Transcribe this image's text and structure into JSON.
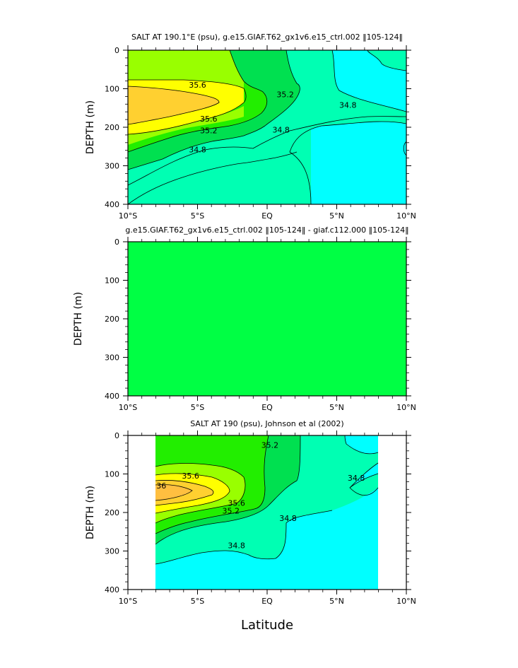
{
  "colors": {
    "s_lt_34_8": "#00ffff",
    "s_34_8_35_0": "#00ffb3",
    "s_35_0_35_2": "#00e050",
    "s_35_2_35_4": "#22ee00",
    "s_35_4_35_6": "#99ff00",
    "s_35_6_35_8": "#ffff00",
    "s_35_8_36_0": "#ffd030",
    "s_gt_36_0": "#ffbf40",
    "difference_fill": "#00ff44"
  },
  "chart_data": [
    {
      "type": "contour",
      "title": "SALT AT 190.1°E (psu), g.e15.GIAF.T62_gx1v6.e15_ctrl.002 ‖105-124‖",
      "ylabel": "DEPTH (m)",
      "xlabel": "",
      "x_ticks": [
        "10°S",
        "5°S",
        "EQ",
        "5°N",
        "10°N"
      ],
      "y_ticks": [
        "0",
        "100",
        "200",
        "300",
        "400"
      ],
      "xlim_deg_lat": [
        -10,
        10
      ],
      "ylim_m": [
        400,
        0
      ],
      "contour_labels": [
        {
          "text": "35.6",
          "lat": -5,
          "depth": 90
        },
        {
          "text": "35.6",
          "lat": -4.2,
          "depth": 178
        },
        {
          "text": "35.2",
          "lat": -4.2,
          "depth": 208
        },
        {
          "text": "34.8",
          "lat": -5,
          "depth": 258
        },
        {
          "text": "35.2",
          "lat": 1.3,
          "depth": 115
        },
        {
          "text": "34.8",
          "lat": 1,
          "depth": 206
        },
        {
          "text": "34.8",
          "lat": 5.8,
          "depth": 142
        }
      ]
    },
    {
      "type": "contour",
      "title": "g.e15.GIAF.T62_gx1v6.e15_ctrl.002 ‖105-124‖ - giaf.c112.000 ‖105-124‖",
      "ylabel": "DEPTH (m)",
      "xlabel": "",
      "x_ticks": [
        "10°S",
        "5°S",
        "EQ",
        "5°N",
        "10°N"
      ],
      "y_ticks": [
        "0",
        "100",
        "200",
        "300",
        "400"
      ],
      "xlim_deg_lat": [
        -10,
        10
      ],
      "ylim_m": [
        400,
        0
      ],
      "field": "uniform (zero difference)"
    },
    {
      "type": "contour",
      "title": "SALT AT 190 (psu), Johnson et al (2002)",
      "ylabel": "DEPTH (m)",
      "xlabel": "Latitude",
      "x_ticks": [
        "10°S",
        "5°S",
        "EQ",
        "5°N",
        "10°N"
      ],
      "y_ticks": [
        "0",
        "100",
        "200",
        "300",
        "400"
      ],
      "xlim_deg_lat": [
        -10,
        10
      ],
      "ylim_m": [
        400,
        0
      ],
      "data_extent_deg_lat": [
        -8,
        8
      ],
      "contour_labels": [
        {
          "text": "35.6",
          "lat": -5.5,
          "depth": 105
        },
        {
          "text": "36",
          "lat": -7.6,
          "depth": 130
        },
        {
          "text": "35.6",
          "lat": -2.2,
          "depth": 175
        },
        {
          "text": "35.2",
          "lat": -2.6,
          "depth": 195
        },
        {
          "text": "35.2",
          "lat": 0.2,
          "depth": 25
        },
        {
          "text": "34.8",
          "lat": 1.5,
          "depth": 215
        },
        {
          "text": "34.8",
          "lat": -2.2,
          "depth": 285
        },
        {
          "text": "34.8",
          "lat": 6.4,
          "depth": 110
        }
      ]
    }
  ]
}
